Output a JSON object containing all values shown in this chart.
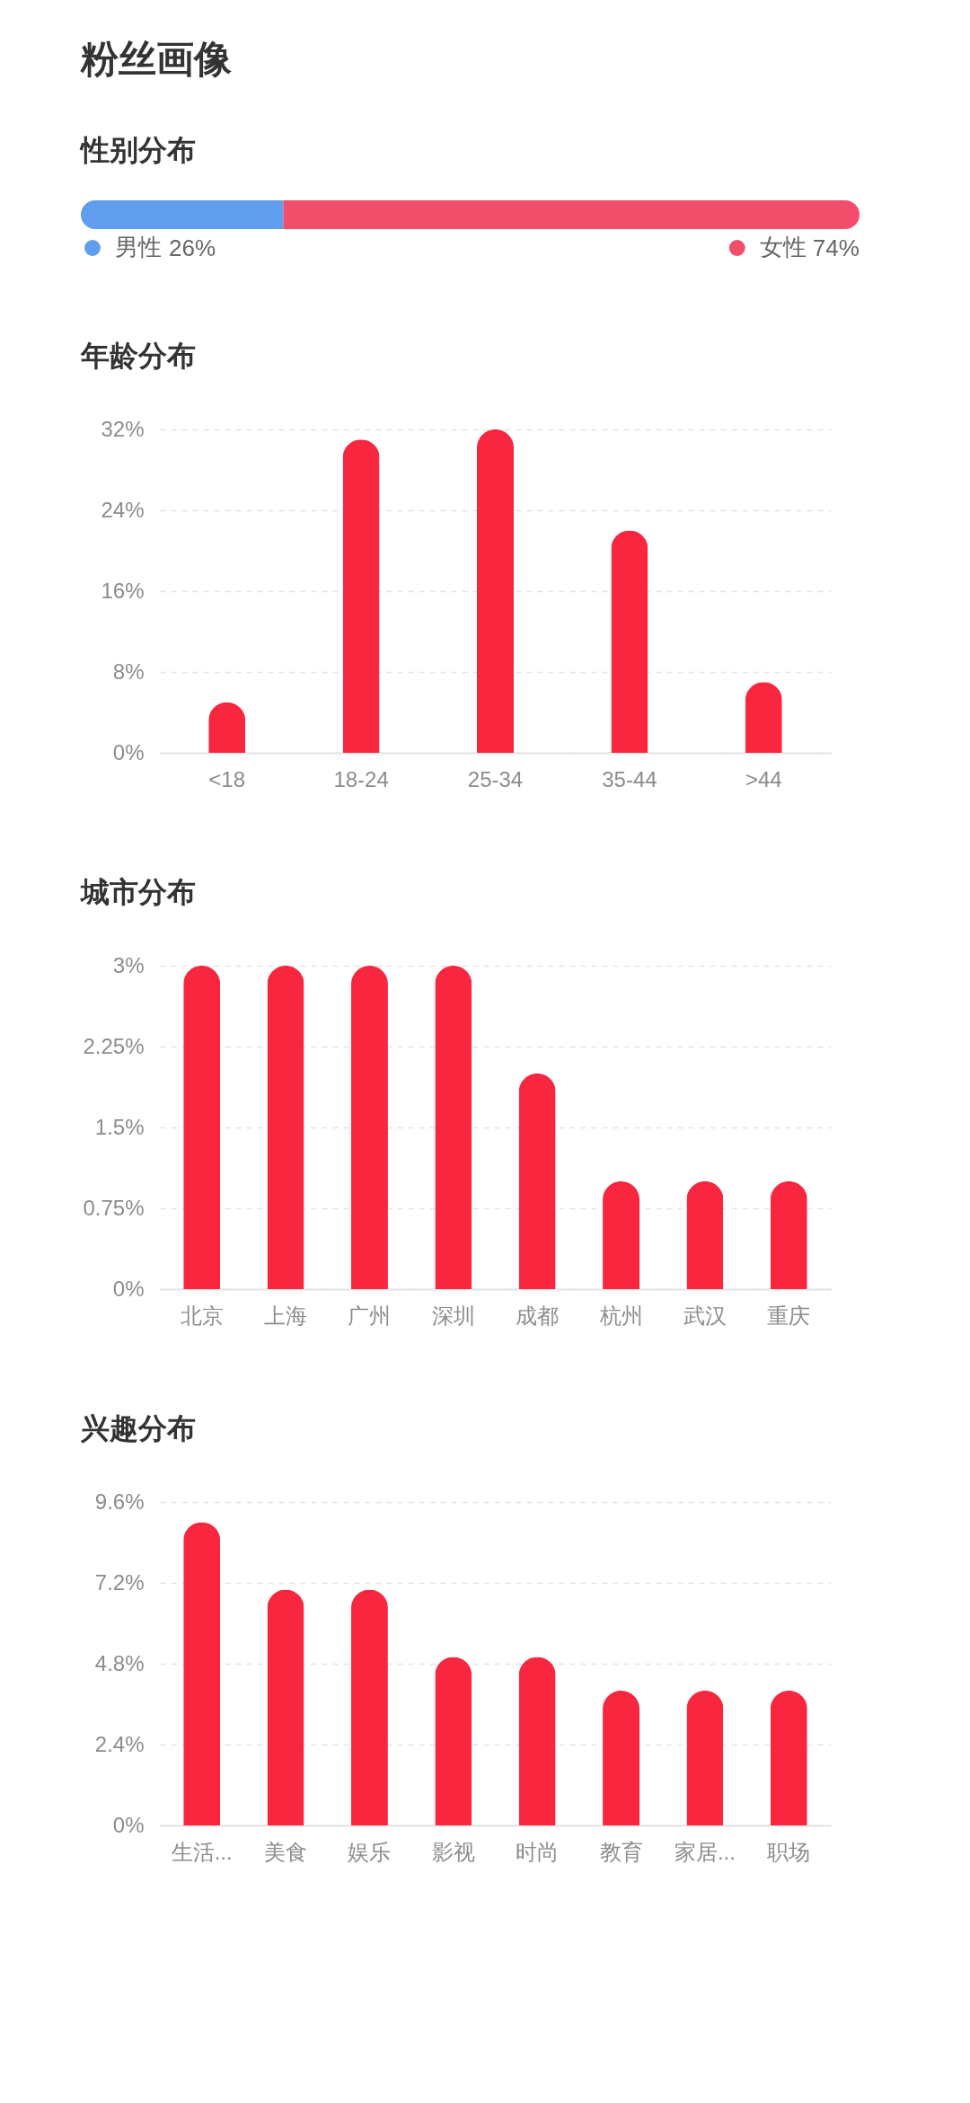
{
  "chart_data": [
    {
      "type": "bar",
      "title": "粉丝画像",
      "subtitle": "性别分布",
      "orientation": "horizontal",
      "stacked": true,
      "categories": [
        null
      ],
      "series": [
        {
          "name": "男性",
          "color": "#5f9ded",
          "values": [
            26
          ],
          "value_labels": [
            "26%"
          ]
        },
        {
          "name": "女性",
          "color": "#f24d6b",
          "values": [
            74
          ],
          "value_labels": [
            "74%"
          ]
        }
      ],
      "legend": "bottom",
      "tick_labels": false
    },
    {
      "type": "bar",
      "title": "年龄分布",
      "categories": [
        "<18",
        "18-24",
        "25-34",
        "35-44",
        ">44"
      ],
      "values": [
        5,
        31,
        32,
        22,
        7
      ],
      "color": "#f8263f",
      "ylim": [
        0,
        32
      ],
      "yticks": [
        {
          "value": 0,
          "label": "0%"
        },
        {
          "value": 8,
          "label": "8%"
        },
        {
          "value": 16,
          "label": "16%"
        },
        {
          "value": 24,
          "label": "24%"
        },
        {
          "value": 32,
          "label": "32%"
        }
      ],
      "grid": "y"
    },
    {
      "type": "bar",
      "title": "城市分布",
      "categories": [
        "北京",
        "上海",
        "广州",
        "深圳",
        "成都",
        "杭州",
        "武汉",
        "重庆"
      ],
      "values": [
        3,
        3,
        3,
        3,
        2,
        1,
        1,
        1
      ],
      "color": "#f8263f",
      "ylim": [
        0,
        3
      ],
      "yticks": [
        {
          "value": 0,
          "label": "0%"
        },
        {
          "value": 0.75,
          "label": "0.75%"
        },
        {
          "value": 1.5,
          "label": "1.5%"
        },
        {
          "value": 2.25,
          "label": "2.25%"
        },
        {
          "value": 3,
          "label": "3%"
        }
      ],
      "grid": "y"
    },
    {
      "type": "bar",
      "title": "兴趣分布",
      "categories": [
        "生活...",
        "美食",
        "娱乐",
        "影视",
        "时尚",
        "教育",
        "家居...",
        "职场"
      ],
      "values": [
        9,
        7,
        7,
        5,
        5,
        4,
        4,
        4
      ],
      "color": "#f8263f",
      "ylim": [
        0,
        9.6
      ],
      "yticks": [
        {
          "value": 0,
          "label": "0%"
        },
        {
          "value": 2.4,
          "label": "2.4%"
        },
        {
          "value": 4.8,
          "label": "4.8%"
        },
        {
          "value": 7.2,
          "label": "7.2%"
        },
        {
          "value": 9.6,
          "label": "9.6%"
        }
      ],
      "grid": "y"
    }
  ]
}
